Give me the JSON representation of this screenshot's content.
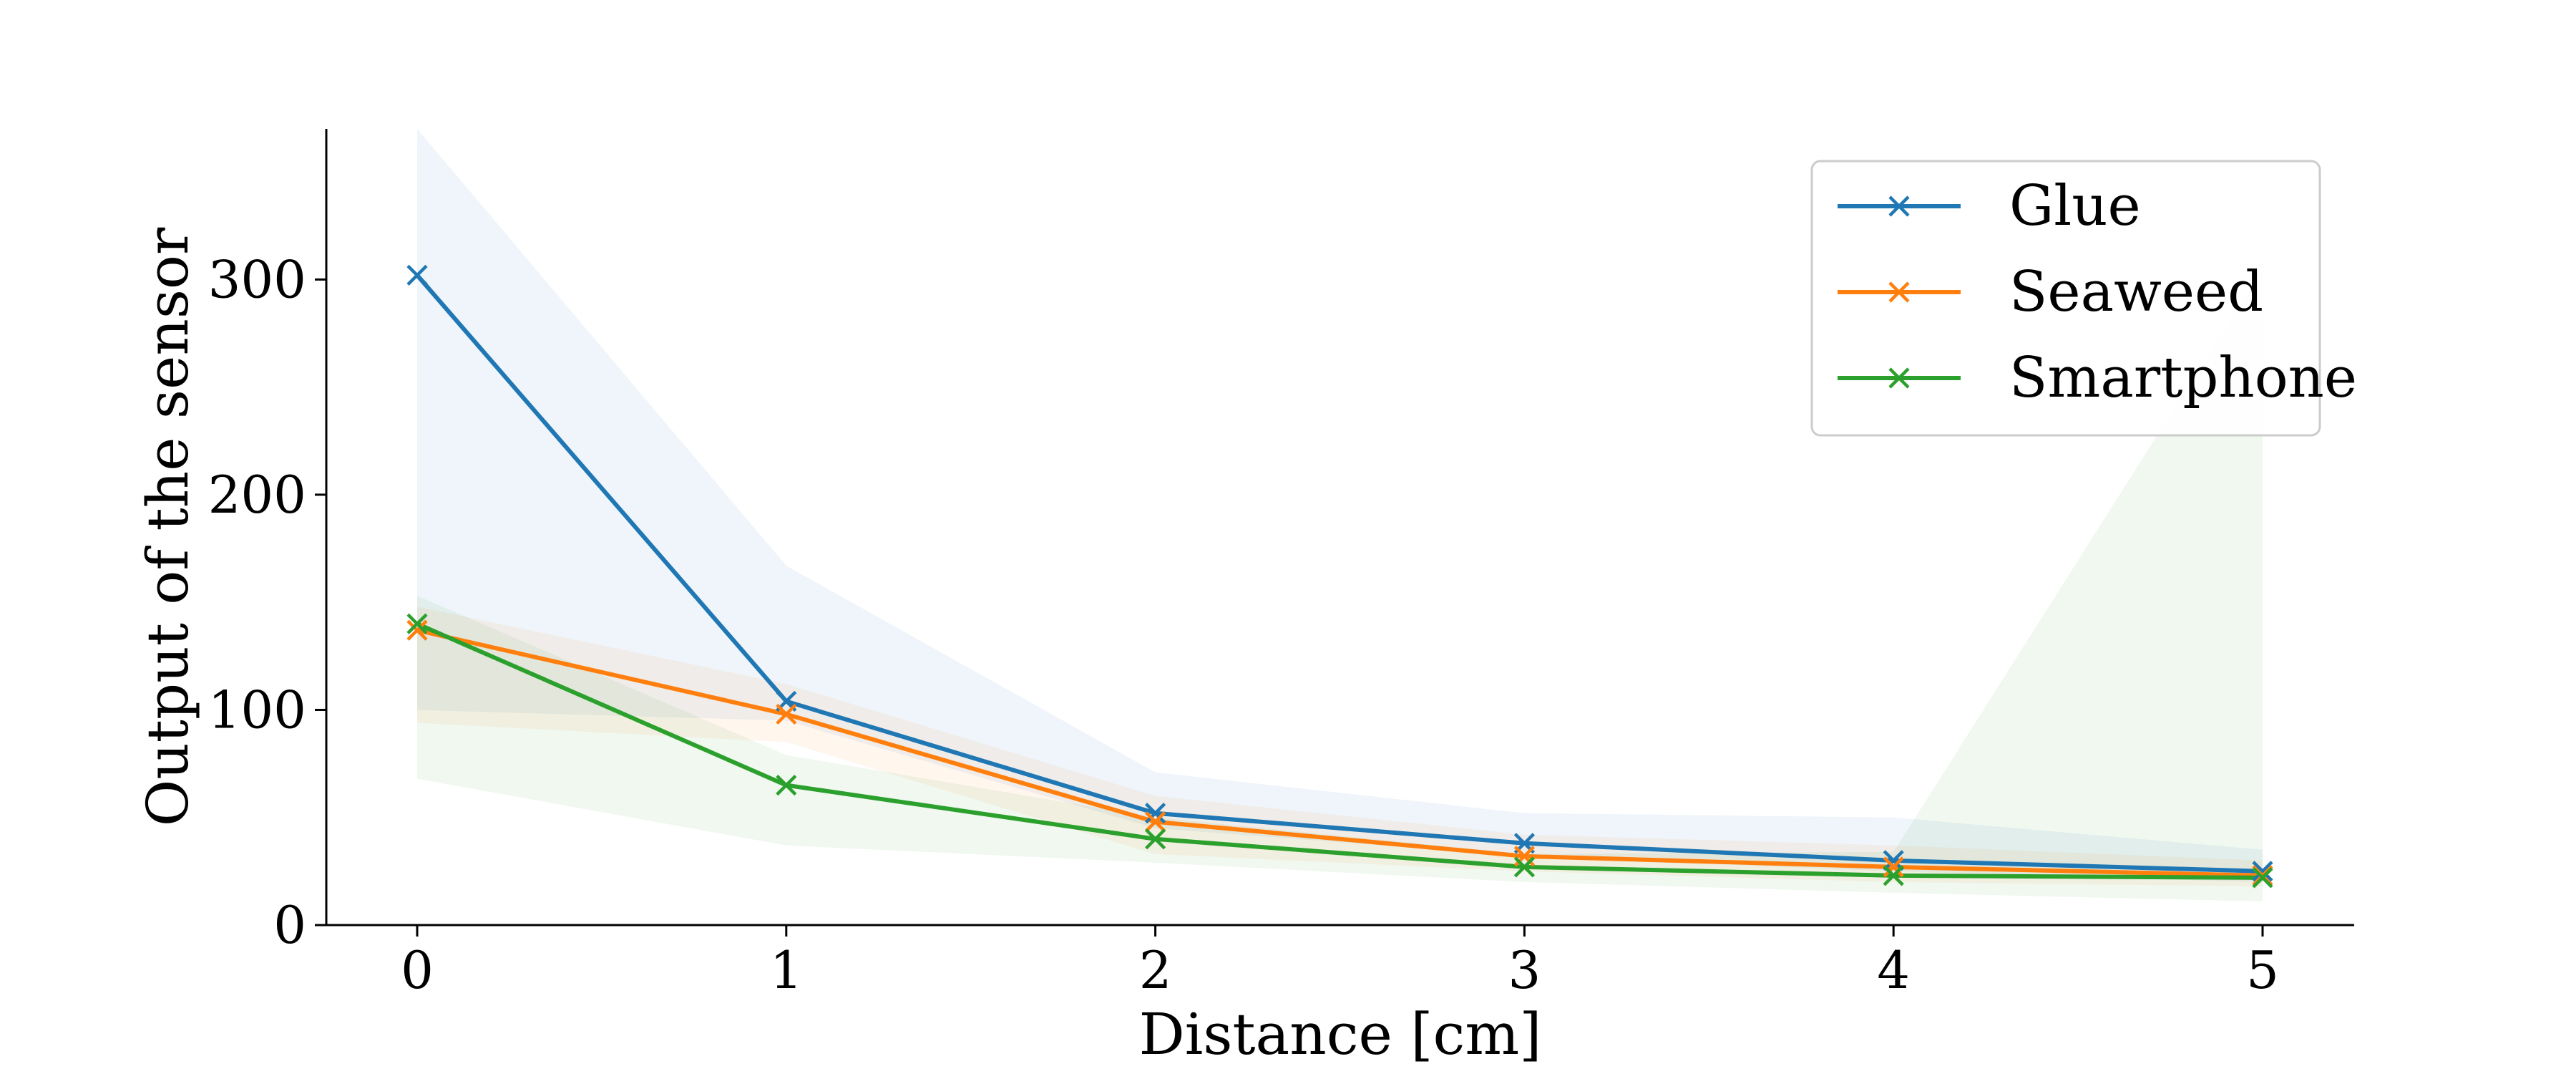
{
  "chart_data": {
    "type": "line",
    "title": "",
    "xlabel": "Distance [cm]",
    "ylabel": "Output of the sensor",
    "x": [
      0,
      1,
      2,
      3,
      4,
      5
    ],
    "xticks": [
      "0",
      "1",
      "2",
      "3",
      "4",
      "5"
    ],
    "yticks": [
      "0",
      "100",
      "200",
      "300"
    ],
    "xlim": [
      -0.25,
      5.25
    ],
    "ylim": [
      0,
      370
    ],
    "grid": false,
    "legend_position": "top-right",
    "marker": "x",
    "series": [
      {
        "name": "Glue",
        "color": "#1f77b4",
        "values": [
          302,
          104,
          52,
          38,
          30,
          25
        ],
        "lower": [
          100,
          95,
          45,
          32,
          25,
          20
        ],
        "upper": [
          370,
          167,
          71,
          52,
          50,
          35
        ]
      },
      {
        "name": "Seaweed",
        "color": "#ff7f0e",
        "values": [
          137,
          98,
          48,
          32,
          27,
          23
        ],
        "lower": [
          94,
          85,
          33,
          25,
          20,
          18
        ],
        "upper": [
          148,
          112,
          60,
          42,
          37,
          30
        ]
      },
      {
        "name": "Smartphone",
        "color": "#2ca02c",
        "values": [
          140,
          65,
          40,
          27,
          23,
          22
        ],
        "lower": [
          68,
          37,
          29,
          20,
          15,
          11
        ],
        "upper": [
          153,
          79,
          50,
          33,
          34,
          305
        ]
      }
    ]
  }
}
